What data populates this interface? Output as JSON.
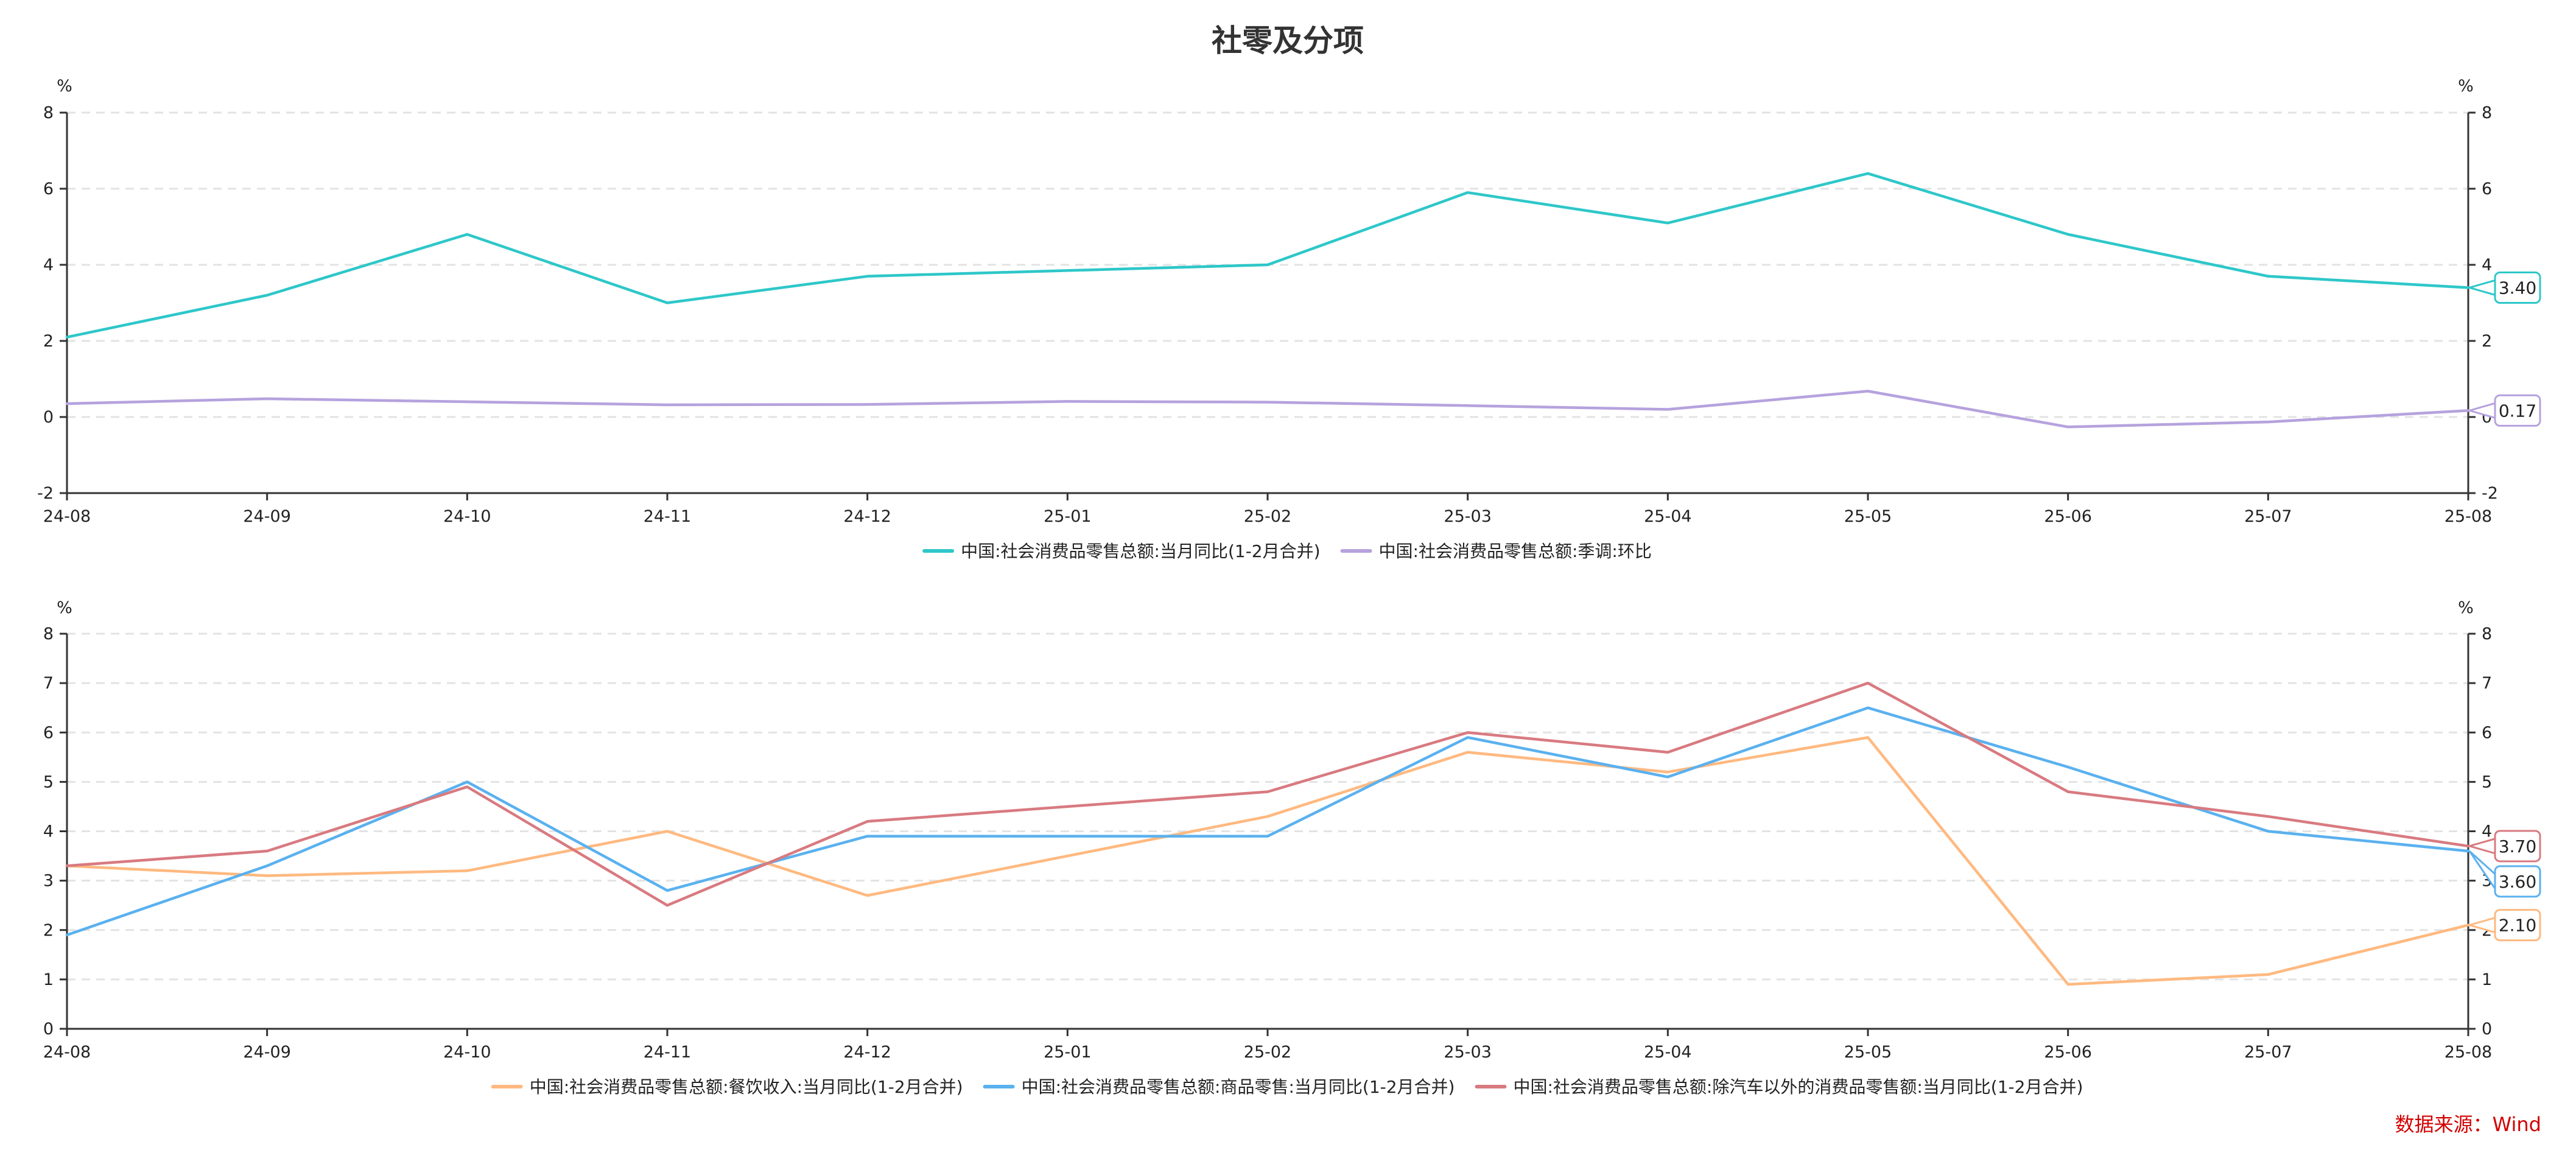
{
  "title": "社零及分项",
  "source": "数据来源：Wind",
  "chart_data": [
    {
      "type": "line",
      "categories": [
        "24-08",
        "24-09",
        "24-10",
        "24-11",
        "24-12",
        "25-01",
        "25-02",
        "25-03",
        "25-04",
        "25-05",
        "25-06",
        "25-07",
        "25-08"
      ],
      "unit_left": "%",
      "unit_right": "%",
      "ylim": [
        -2,
        8
      ],
      "yticks": [
        -2,
        0,
        2,
        4,
        6,
        8
      ],
      "series": [
        {
          "name": "中国:社会消费品零售总额:当月同比(1-2月合并)",
          "color": "#2ec7c9",
          "values": [
            2.1,
            3.2,
            4.8,
            3.0,
            3.7,
            3.85,
            4.0,
            5.9,
            5.1,
            6.4,
            4.8,
            3.7,
            3.4
          ],
          "end_label": "3.40"
        },
        {
          "name": "中国:社会消费品零售总额:季调:环比",
          "color": "#b6a2de",
          "values": [
            0.35,
            0.48,
            0.4,
            0.32,
            0.33,
            0.41,
            0.39,
            0.3,
            0.2,
            0.68,
            -0.26,
            -0.13,
            0.17
          ],
          "end_label": "0.17"
        }
      ]
    },
    {
      "type": "line",
      "categories": [
        "24-08",
        "24-09",
        "24-10",
        "24-11",
        "24-12",
        "25-01",
        "25-02",
        "25-03",
        "25-04",
        "25-05",
        "25-06",
        "25-07",
        "25-08"
      ],
      "unit_left": "%",
      "unit_right": "%",
      "ylim": [
        0,
        8
      ],
      "yticks": [
        0,
        1,
        2,
        3,
        4,
        5,
        6,
        7,
        8
      ],
      "series": [
        {
          "name": "中国:社会消费品零售总额:餐饮收入:当月同比(1-2月合并)",
          "color": "#ffb980",
          "values": [
            3.3,
            3.1,
            3.2,
            4.0,
            2.7,
            3.5,
            4.3,
            5.6,
            5.2,
            5.9,
            0.9,
            1.1,
            2.1
          ],
          "end_label": "2.10"
        },
        {
          "name": "中国:社会消费品零售总额:商品零售:当月同比(1-2月合并)",
          "color": "#5ab1ef",
          "values": [
            1.9,
            3.3,
            5.0,
            2.8,
            3.9,
            3.9,
            3.9,
            5.9,
            5.1,
            6.5,
            5.3,
            4.0,
            3.6
          ],
          "end_label": "3.60"
        },
        {
          "name": "中国:社会消费品零售总额:除汽车以外的消费品零售额:当月同比(1-2月合并)",
          "color": "#d87a80",
          "values": [
            3.3,
            3.6,
            4.9,
            2.5,
            4.2,
            4.5,
            4.8,
            6.0,
            5.6,
            7.0,
            4.8,
            4.3,
            3.7
          ],
          "end_label": "3.70"
        }
      ]
    }
  ]
}
